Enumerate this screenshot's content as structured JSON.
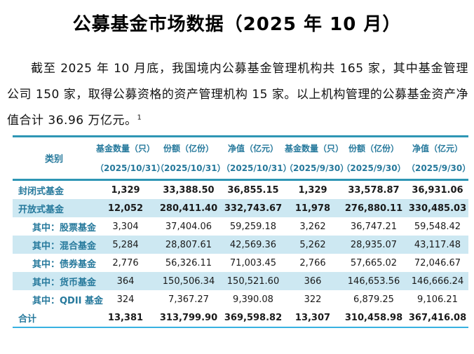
{
  "doc": {
    "title": "公募基金市场数据（2025 年 10 月）",
    "paragraph": "截至 2025 年 10 月底，我国境内公募基金管理机构共 165 家，其中基金管理公司 150 家，取得公募资格的资产管理机构 15 家。以上机构管理的公募基金资产净值合计 36.96 万亿元。",
    "footnote_ref": "1"
  },
  "table": {
    "header": {
      "category": "类别",
      "columns": [
        {
          "line1": "基金数量（只）",
          "line2": "（2025/10/31）"
        },
        {
          "line1": "份额（亿份）",
          "line2": "（2025/10/31）"
        },
        {
          "line1": "净值（亿元）",
          "line2": "（2025/10/31）"
        },
        {
          "line1": "基金数量（只）",
          "line2": "（2025/9/30）"
        },
        {
          "line1": "份额（亿份）",
          "line2": "（2025/9/30）"
        },
        {
          "line1": "净值（亿元）",
          "line2": "（2025/9/30）"
        }
      ]
    },
    "rows": [
      {
        "label": "封闭式基金",
        "indent": false,
        "bold": true,
        "shaded": false,
        "values": [
          "1,329",
          "33,388.50",
          "36,855.15",
          "1,329",
          "33,578.87",
          "36,931.06"
        ]
      },
      {
        "label": "开放式基金",
        "indent": false,
        "bold": true,
        "shaded": true,
        "values": [
          "12,052",
          "280,411.40",
          "332,743.67",
          "11,978",
          "276,880.11",
          "330,485.03"
        ]
      },
      {
        "label": "其中：股票基金",
        "indent": true,
        "bold": false,
        "shaded": false,
        "values": [
          "3,304",
          "37,404.06",
          "59,259.18",
          "3,262",
          "36,747.21",
          "59,548.42"
        ]
      },
      {
        "label": "其中：混合基金",
        "indent": true,
        "bold": false,
        "shaded": true,
        "values": [
          "5,284",
          "28,807.61",
          "42,569.36",
          "5,262",
          "28,935.07",
          "43,117.48"
        ]
      },
      {
        "label": "其中：债券基金",
        "indent": true,
        "bold": false,
        "shaded": false,
        "values": [
          "2,776",
          "56,326.11",
          "71,003.45",
          "2,766",
          "57,665.02",
          "72,046.67"
        ]
      },
      {
        "label": "其中：货币基金",
        "indent": true,
        "bold": false,
        "shaded": true,
        "values": [
          "364",
          "150,506.34",
          "150,521.60",
          "366",
          "146,653.56",
          "146,666.24"
        ]
      },
      {
        "label": "其中：QDII 基金",
        "indent": true,
        "bold": false,
        "shaded": false,
        "values": [
          "324",
          "7,367.27",
          "9,390.08",
          "322",
          "6,879.25",
          "9,106.21"
        ]
      },
      {
        "label": "合计",
        "indent": false,
        "bold": true,
        "shaded": false,
        "values": [
          "13,381",
          "313,799.90",
          "369,598.82",
          "13,307",
          "310,458.98",
          "367,416.08"
        ]
      }
    ]
  },
  "colors": {
    "accent_teal_text": "#26799c",
    "border_teal": "#2e96b5",
    "border_bottom_cyan": "#38b1e1",
    "shaded_row_bg": "#cde8f2"
  }
}
